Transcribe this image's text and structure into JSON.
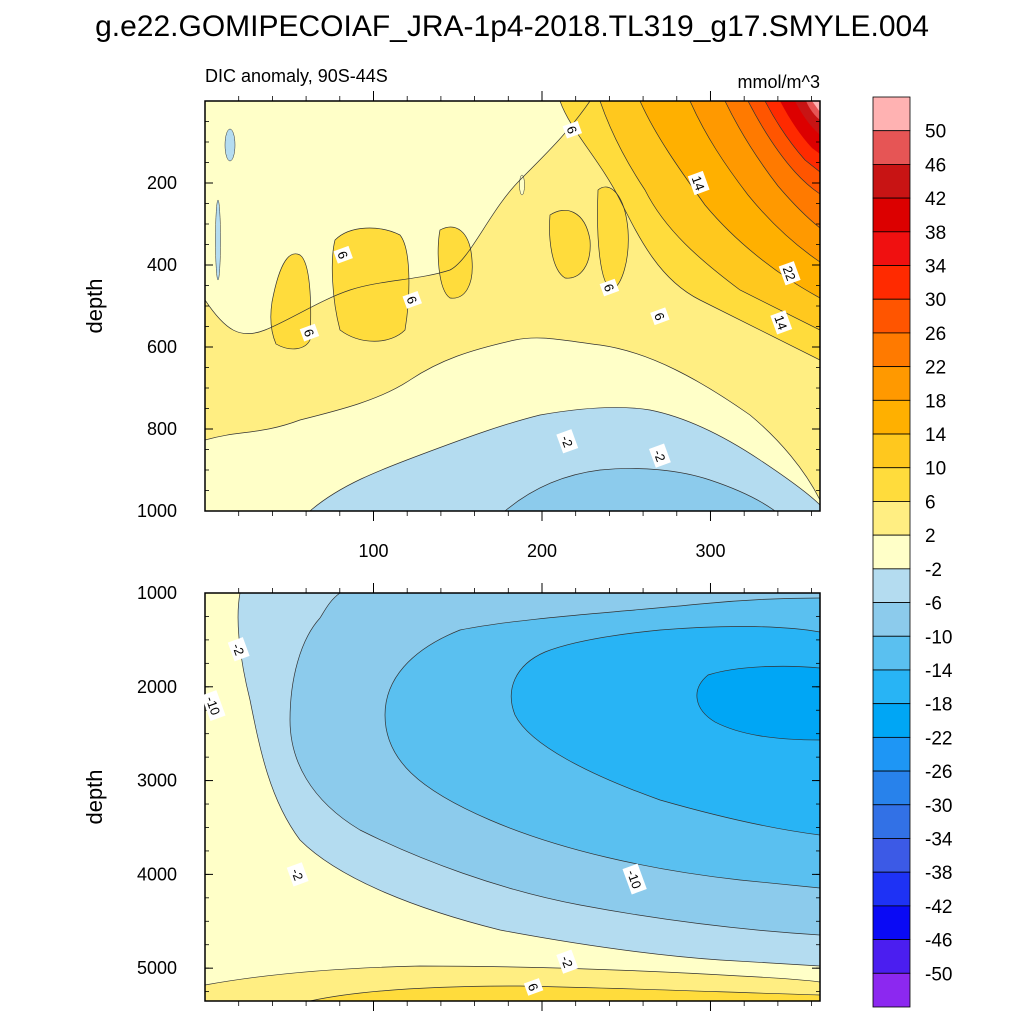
{
  "figure": {
    "title": "g.e22.GOMIPECOIAF_JRA-1p4-2018.TL319_g17.SMYLE.004"
  },
  "chart_data": [
    {
      "type": "heatmap",
      "subtitle_left": "DIC anomaly, 90S-44S",
      "subtitle_right": "mmol/m^3",
      "xlabel": "",
      "ylabel": "depth",
      "xlim": [
        0,
        365
      ],
      "ylim": [
        1000,
        0
      ],
      "x_ticks": [
        100,
        200,
        300
      ],
      "y_ticks": [
        200,
        400,
        600,
        800,
        1000
      ],
      "contour_labels": [
        {
          "text": "6",
          "x": 218,
          "y": 70
        },
        {
          "text": "14",
          "x": 293,
          "y": 200
        },
        {
          "text": "6",
          "x": 82,
          "y": 375
        },
        {
          "text": "6",
          "x": 123,
          "y": 485
        },
        {
          "text": "6",
          "x": 62,
          "y": 565
        },
        {
          "text": "6",
          "x": 240,
          "y": 455
        },
        {
          "text": "6",
          "x": 270,
          "y": 525
        },
        {
          "text": "22",
          "x": 347,
          "y": 420
        },
        {
          "text": "14",
          "x": 342,
          "y": 540
        },
        {
          "text": "-2",
          "x": 215,
          "y": 830
        },
        {
          "text": "-2",
          "x": 270,
          "y": 865
        }
      ],
      "regions": [
        {
          "level": "-6",
          "description": "deep blue patch",
          "x": [
            180,
            345
          ],
          "y": [
            880,
            1000
          ]
        },
        {
          "level": "-2",
          "description": "light blue",
          "x": [
            80,
            365
          ],
          "y": [
            760,
            1000
          ]
        },
        {
          "level": "6",
          "description": "yellow pockets",
          "x": [
            40,
            250
          ],
          "y": [
            330,
            600
          ]
        },
        {
          "level": "10-50",
          "description": "warm core",
          "x": [
            240,
            365
          ],
          "y": [
            0,
            500
          ]
        }
      ]
    },
    {
      "type": "heatmap",
      "xlabel": "",
      "ylabel": "depth",
      "xlim": [
        0,
        365
      ],
      "ylim": [
        5350,
        1000
      ],
      "x_ticks": [
        100,
        200,
        300
      ],
      "y_ticks": [
        1000,
        2000,
        3000,
        4000,
        5000
      ],
      "contour_labels": [
        {
          "text": "-2",
          "x": 20,
          "y": 1600
        },
        {
          "text": "-10",
          "x": 5,
          "y": 2200
        },
        {
          "text": "-2",
          "x": 55,
          "y": 4000
        },
        {
          "text": "-10",
          "x": 255,
          "y": 4050
        },
        {
          "text": "-2",
          "x": 215,
          "y": 4930
        },
        {
          "text": "6",
          "x": 195,
          "y": 5200
        }
      ],
      "regions": [
        {
          "level": "-2",
          "description": "light blue tongue",
          "x": [
            20,
            365
          ],
          "y": [
            1000,
            4800
          ]
        },
        {
          "level": "-6",
          "description": "medium blue",
          "x": [
            110,
            365
          ],
          "y": [
            1150,
            4600
          ]
        },
        {
          "level": "-10",
          "description": "blue",
          "x": [
            180,
            365
          ],
          "y": [
            1400,
            3800
          ]
        },
        {
          "level": "-14",
          "description": "bright blue core",
          "x": [
            290,
            365
          ],
          "y": [
            1800,
            2600
          ]
        },
        {
          "level": "6",
          "description": "yellow bottom",
          "x": [
            40,
            365
          ],
          "y": [
            4900,
            5350
          ]
        }
      ]
    }
  ],
  "colorbar": {
    "labels": [
      "50",
      "46",
      "42",
      "38",
      "34",
      "30",
      "26",
      "22",
      "18",
      "14",
      "10",
      "6",
      "2",
      "-2",
      "-6",
      "-10",
      "-14",
      "-18",
      "-22",
      "-26",
      "-30",
      "-34",
      "-38",
      "-42",
      "-46",
      "-50"
    ],
    "colors": [
      "#FFB2B2",
      "#E65555",
      "#C81414",
      "#DC0000",
      "#F01010",
      "#FF2A00",
      "#FF5500",
      "#FF7A00",
      "#FF9900",
      "#FFB000",
      "#FFC81E",
      "#FFDC3C",
      "#FFEE82",
      "#FFFFC8",
      "#B4DCF0",
      "#8CCBEC",
      "#5AC0F0",
      "#28B4F5",
      "#00A6F5",
      "#1E96F5",
      "#2882EB",
      "#3271E6",
      "#3C5AE6",
      "#1E32F5",
      "#0A0AF5",
      "#4B1EF0",
      "#8C28F0"
    ]
  }
}
